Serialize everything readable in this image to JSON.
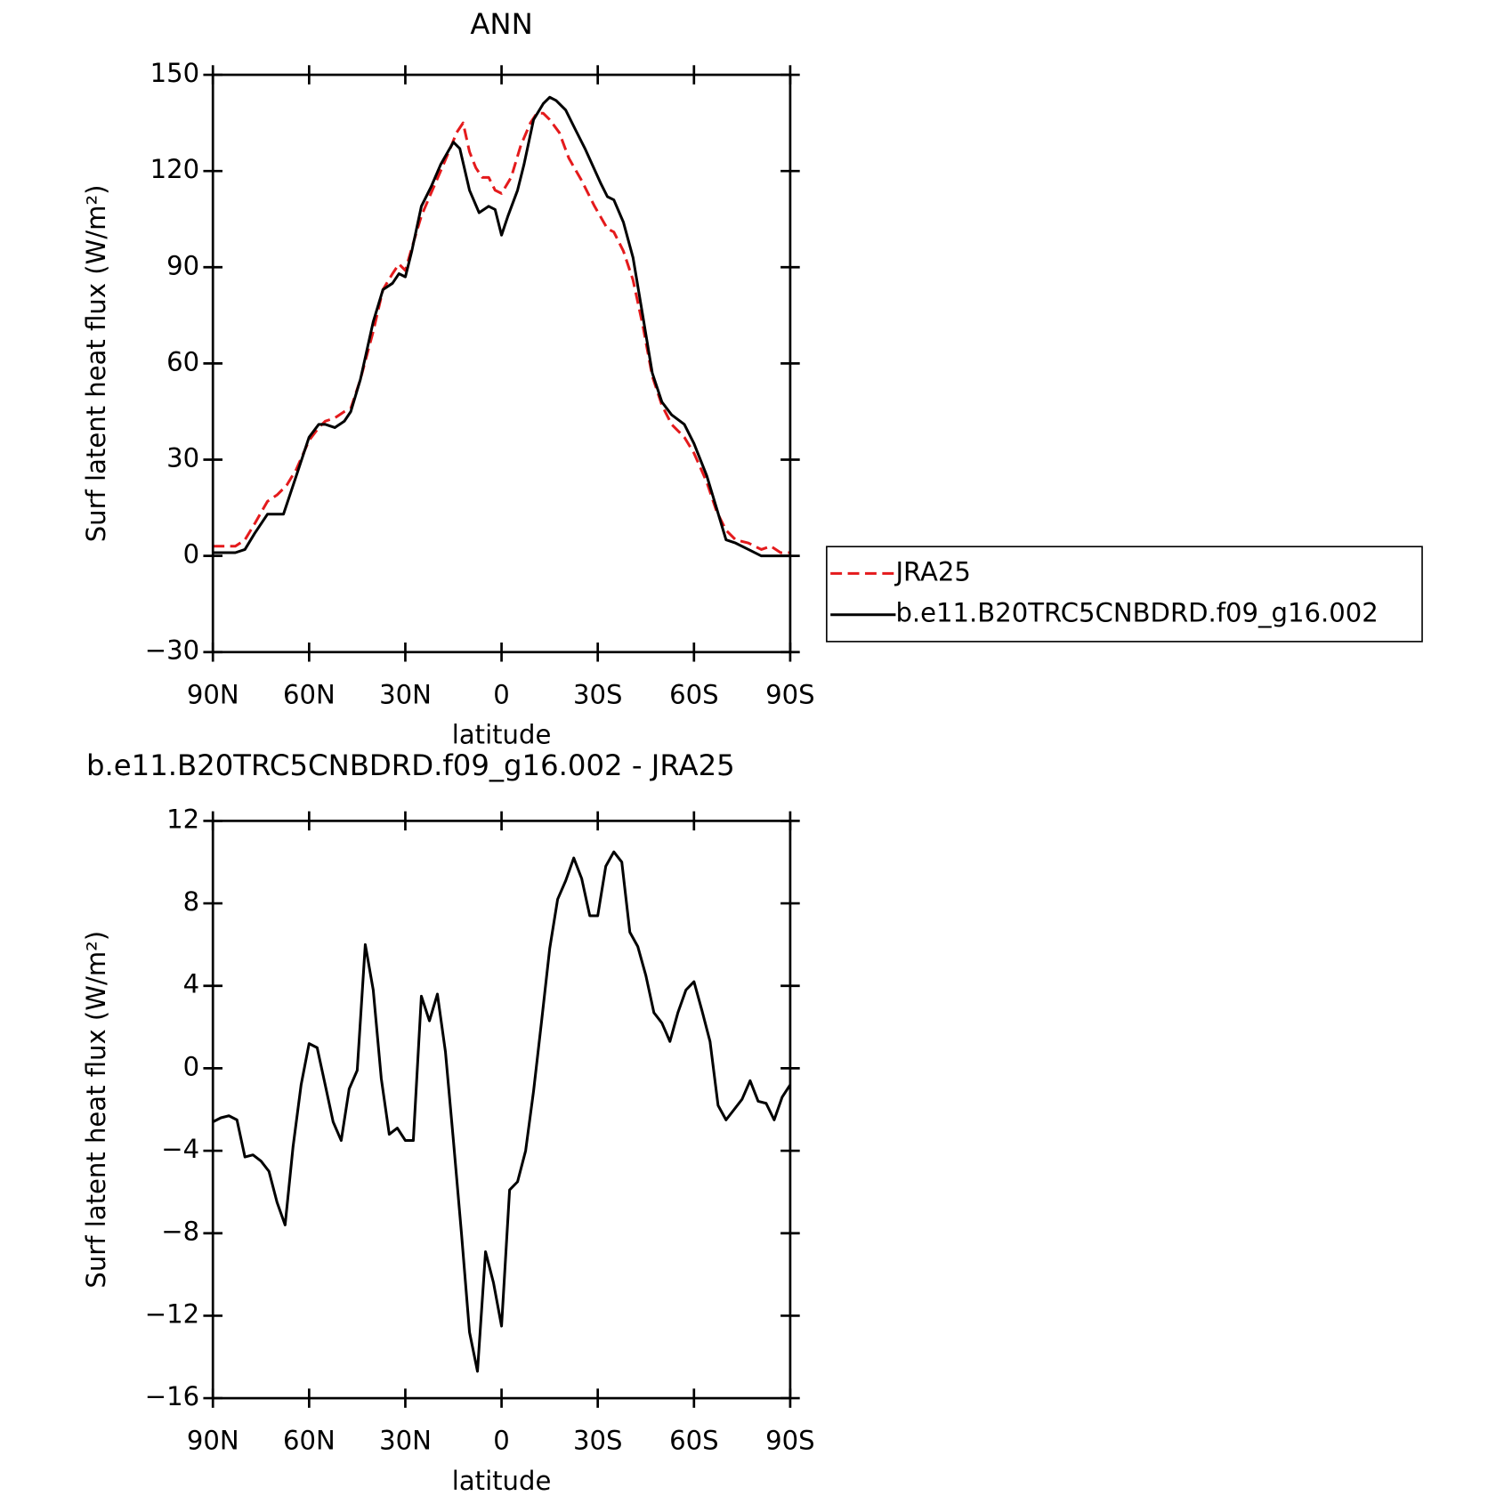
{
  "chart_data": [
    {
      "type": "line",
      "title": "ANN",
      "xlabel": "latitude",
      "ylabel": "Surf latent heat flux (W/m²)",
      "xlim": [
        90,
        -90
      ],
      "xticks": [
        {
          "value": 90,
          "label": "90N"
        },
        {
          "value": 60,
          "label": "60N"
        },
        {
          "value": 30,
          "label": "30N"
        },
        0,
        {
          "value": -30,
          "label": "30S"
        },
        {
          "value": -60,
          "label": "60S"
        },
        {
          "value": -90,
          "label": "90S"
        }
      ],
      "ylim": [
        -30,
        150
      ],
      "yticks": [
        {
          "value": -30,
          "label": "−30"
        },
        0,
        30,
        60,
        90,
        120,
        150
      ],
      "legend": "right",
      "series": [
        {
          "name": "JRA25",
          "color": "#e41a1c",
          "dash": true,
          "x": [
            90,
            83,
            80,
            77,
            73,
            70,
            67,
            64,
            60,
            57,
            55,
            52,
            49,
            47,
            44,
            40,
            37,
            34,
            32,
            30,
            28,
            25,
            22,
            19,
            16,
            14,
            12,
            10,
            8,
            6,
            4,
            2,
            0,
            -3,
            -6,
            -9,
            -11,
            -13,
            -15,
            -18,
            -21,
            -25,
            -29,
            -33,
            -35,
            -38,
            -41,
            -44,
            -47,
            -50,
            -53,
            -57,
            -60,
            -64,
            -67,
            -70,
            -73,
            -77,
            -81,
            -84,
            -87,
            -90
          ],
          "values": [
            3,
            3,
            5,
            10,
            17,
            19,
            22,
            27,
            36,
            40,
            42,
            43,
            45,
            46,
            55,
            70,
            83,
            88,
            91,
            89,
            96,
            106,
            113,
            120,
            127,
            132,
            135,
            126,
            121,
            118,
            118,
            114,
            113,
            118,
            128,
            135,
            138,
            138,
            136,
            132,
            124,
            117,
            109,
            102,
            101,
            95,
            86,
            72,
            56,
            47,
            41,
            37,
            32,
            23,
            14,
            8,
            5,
            4,
            2,
            3,
            1,
            1
          ]
        },
        {
          "name": "b.e11.B20TRC5CNBDRD.f09_g16.002",
          "color": "#000000",
          "dash": false,
          "x": [
            90,
            83,
            80,
            77,
            73,
            68,
            64,
            60,
            57,
            55,
            52,
            49,
            47,
            44,
            40,
            37,
            34,
            32,
            30,
            28,
            25,
            22,
            19,
            15,
            13,
            10,
            7,
            4,
            2,
            0,
            -2,
            -5,
            -7,
            -10,
            -13,
            -15,
            -17,
            -20,
            -23,
            -26,
            -31,
            -33,
            -35,
            -38,
            -41,
            -44,
            -47,
            -50,
            -53,
            -57,
            -60,
            -64,
            -67,
            -70,
            -73,
            -77,
            -81,
            -84,
            -90
          ],
          "values": [
            1,
            1,
            2,
            7,
            13,
            13,
            25,
            37,
            41,
            41,
            40,
            42,
            45,
            55,
            73,
            83,
            85,
            88,
            87,
            95,
            109,
            115,
            122,
            129,
            127,
            114,
            107,
            109,
            108,
            100,
            106,
            114,
            122,
            136,
            141,
            143,
            142,
            139,
            133,
            127,
            116,
            112,
            111,
            104,
            93,
            75,
            57,
            48,
            44,
            41,
            35,
            25,
            15,
            5,
            4,
            2,
            0,
            0,
            0
          ]
        }
      ]
    },
    {
      "type": "line",
      "title": "b.e11.B20TRC5CNBDRD.f09_g16.002 - JRA25",
      "xlabel": "latitude",
      "ylabel": "Surf latent heat flux (W/m²)",
      "xlim": [
        90,
        -90
      ],
      "xticks": [
        {
          "value": 90,
          "label": "90N"
        },
        {
          "value": 60,
          "label": "60N"
        },
        {
          "value": 30,
          "label": "30N"
        },
        0,
        {
          "value": -30,
          "label": "30S"
        },
        {
          "value": -60,
          "label": "60S"
        },
        {
          "value": -90,
          "label": "90S"
        }
      ],
      "ylim": [
        -16,
        12
      ],
      "yticks": [
        {
          "value": -16,
          "label": "−16"
        },
        {
          "value": -12,
          "label": "−12"
        },
        {
          "value": -8,
          "label": "−8"
        },
        {
          "value": -4,
          "label": "−4"
        },
        0,
        4,
        8,
        12
      ],
      "series": [
        {
          "color": "#000000",
          "dash": false,
          "x": [
            90,
            87.5,
            85,
            82.5,
            80,
            77.5,
            75,
            72.5,
            70,
            67.5,
            65,
            62.5,
            60,
            57.5,
            55,
            52.5,
            50,
            47.5,
            45,
            42.5,
            40,
            37.5,
            35,
            32.5,
            30,
            27.5,
            25,
            22.5,
            20,
            17.5,
            15,
            12.5,
            10,
            7.5,
            5,
            2.5,
            0,
            -2.5,
            -5,
            -7.5,
            -10,
            -12.5,
            -15,
            -17.5,
            -20,
            -22.5,
            -25,
            -27.5,
            -30,
            -32.5,
            -35,
            -37.5,
            -40,
            -42.5,
            -45,
            -47.5,
            -50,
            -52.5,
            -55,
            -57.5,
            -60,
            -62.5,
            -65,
            -67.5,
            -70,
            -72.5,
            -75,
            -77.5,
            -80,
            -82.5,
            -85,
            -87.5,
            -90
          ],
          "values": [
            -2.6,
            -2.4,
            -2.3,
            -2.5,
            -4.3,
            -4.2,
            -4.5,
            -5,
            -6.5,
            -7.6,
            -3.8,
            -0.8,
            1.2,
            1,
            -0.8,
            -2.6,
            -3.5,
            -1,
            -0.1,
            6,
            3.8,
            -0.5,
            -3.2,
            -2.9,
            -3.5,
            -3.5,
            3.5,
            2.3,
            3.6,
            0.8,
            -3.5,
            -8,
            -12.8,
            -14.7,
            -8.9,
            -10.4,
            -12.5,
            -5.9,
            -5.5,
            -4,
            -1.1,
            2.3,
            5.8,
            8.2,
            9.1,
            10.2,
            9.2,
            7.4,
            7.4,
            9.8,
            10.5,
            10,
            6.6,
            5.9,
            4.5,
            2.7,
            2.2,
            1.3,
            2.7,
            3.8,
            4.2,
            2.8,
            1.3,
            -1.8,
            -2.5,
            -2,
            -1.5,
            -0.6,
            -1.6,
            -1.7,
            -2.5,
            -1.4,
            -0.8
          ]
        }
      ]
    }
  ]
}
